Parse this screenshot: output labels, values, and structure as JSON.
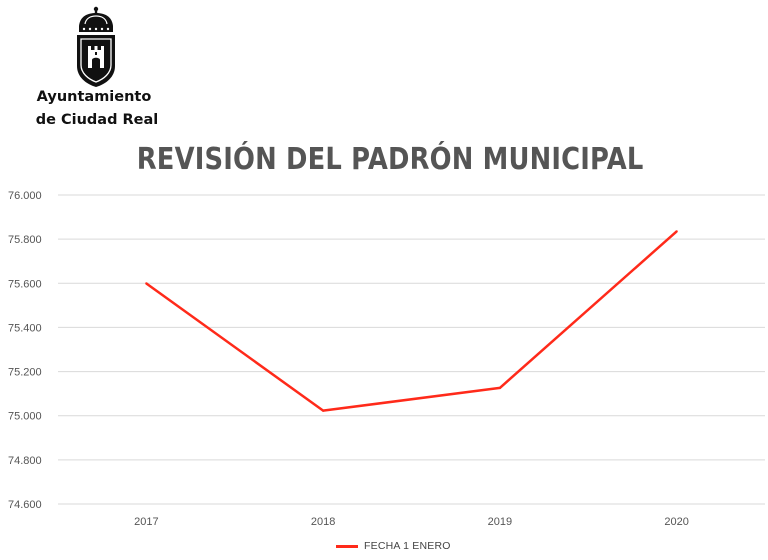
{
  "header": {
    "org_line1": "Ayuntamiento",
    "org_line2": "de Ciudad Real",
    "logo_icon": "crest-icon",
    "title": "REVISIÓN DEL PADRÓN MUNICIPAL"
  },
  "chart_data": {
    "type": "line",
    "title": "REVISIÓN DEL PADRÓN MUNICIPAL",
    "xlabel": "",
    "ylabel": "",
    "categories": [
      "2017",
      "2018",
      "2019",
      "2020"
    ],
    "series": [
      {
        "name": "FECHA 1 ENERO",
        "values": [
          75599,
          75023,
          75126,
          75835
        ],
        "color": "#ff2a1a"
      }
    ],
    "ylim": [
      74600,
      76000
    ],
    "yticks": [
      74600,
      74800,
      75000,
      75200,
      75400,
      75600,
      75800,
      76000
    ],
    "ytick_labels": [
      "74.600",
      "74.800",
      "75.000",
      "75.200",
      "75.400",
      "75.600",
      "75.800",
      "76.000"
    ],
    "grid": true,
    "legend_position": "bottom"
  }
}
